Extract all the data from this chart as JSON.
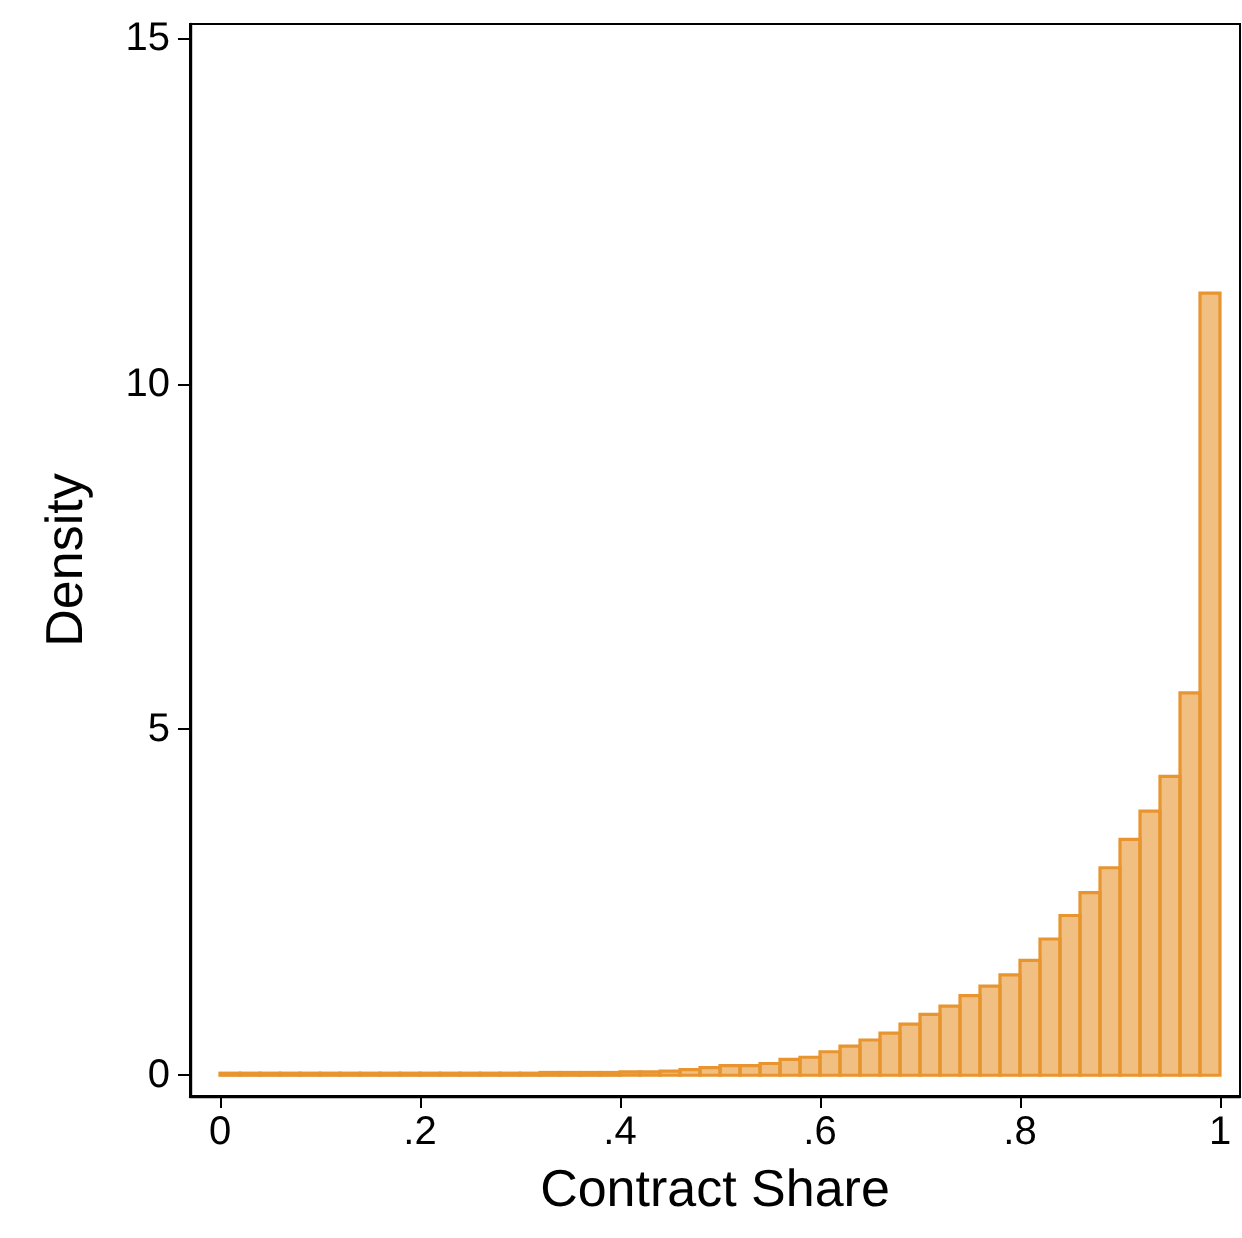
{
  "chart_data": {
    "type": "histogram",
    "xlabel": "Contract Share",
    "ylabel": "Density",
    "bins": [
      0,
      0.02,
      0.04,
      0.06,
      0.08,
      0.1,
      0.12,
      0.14,
      0.16,
      0.18,
      0.2,
      0.22,
      0.24,
      0.26,
      0.28,
      0.3,
      0.32,
      0.34,
      0.36,
      0.38,
      0.4,
      0.42,
      0.44,
      0.46,
      0.48,
      0.5,
      0.52,
      0.54,
      0.56,
      0.58,
      0.6,
      0.62,
      0.64,
      0.66,
      0.68,
      0.7,
      0.72,
      0.74,
      0.76,
      0.78,
      0.8,
      0.82,
      0.84,
      0.86,
      0.88,
      0.9,
      0.92,
      0.94,
      0.96,
      0.98,
      1
    ],
    "values": [
      0.03,
      0.03,
      0.03,
      0.03,
      0.03,
      0.03,
      0.03,
      0.03,
      0.03,
      0.03,
      0.03,
      0.03,
      0.03,
      0.03,
      0.03,
      0.03,
      0.04,
      0.04,
      0.04,
      0.04,
      0.05,
      0.05,
      0.06,
      0.08,
      0.11,
      0.14,
      0.14,
      0.17,
      0.23,
      0.26,
      0.34,
      0.42,
      0.51,
      0.61,
      0.74,
      0.88,
      1.0,
      1.15,
      1.29,
      1.45,
      1.66,
      1.97,
      2.31,
      2.64,
      3.0,
      3.41,
      3.82,
      4.32,
      5.53,
      11.31
    ],
    "color": "#e8952f",
    "xlim": [
      -0.03,
      1.02
    ],
    "xticks": [
      0,
      {
        "value": 0.2,
        "label": ".2"
      },
      {
        "value": 0.4,
        "label": ".4"
      },
      {
        "value": 0.6,
        "label": ".6"
      },
      {
        "value": 0.8,
        "label": ".8"
      },
      1
    ],
    "ylim": [
      -0.3,
      15.2
    ],
    "yticks": [
      0,
      5,
      10,
      15
    ]
  }
}
